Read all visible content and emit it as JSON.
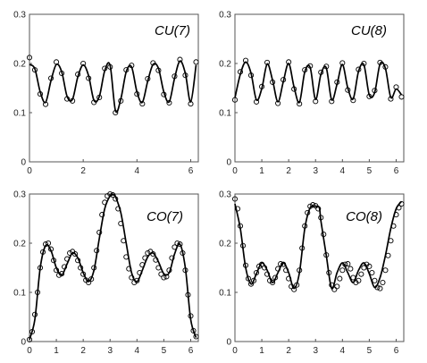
{
  "chart_data": [
    {
      "type": "line",
      "title": "CU(7)",
      "xlim": [
        0,
        6.2832
      ],
      "ylim": [
        0,
        0.3
      ],
      "xticks": [
        0,
        2,
        4,
        6
      ],
      "yticks": [
        0,
        0.1,
        0.2,
        0.3
      ],
      "ytick_labels": [
        "0",
        "0.1",
        "0.2",
        "0.3"
      ],
      "grid": false,
      "legend": "none",
      "series": [
        {
          "style": "solid-line",
          "x": [
            0,
            0.2,
            0.4,
            0.6,
            0.8,
            1.0,
            1.2,
            1.4,
            1.6,
            1.8,
            2.0,
            2.2,
            2.4,
            2.6,
            2.8,
            3.0,
            3.2,
            3.4,
            3.6,
            3.8,
            4.0,
            4.2,
            4.4,
            4.6,
            4.8,
            5.0,
            5.2,
            5.4,
            5.6,
            5.8,
            6.0,
            6.2
          ],
          "y": [
            0.198,
            0.189,
            0.142,
            0.121,
            0.165,
            0.198,
            0.183,
            0.133,
            0.127,
            0.173,
            0.197,
            0.175,
            0.125,
            0.133,
            0.185,
            0.196,
            0.104,
            0.128,
            0.183,
            0.193,
            0.142,
            0.121,
            0.164,
            0.198,
            0.19,
            0.142,
            0.122,
            0.17,
            0.205,
            0.18,
            0.122,
            0.197
          ]
        },
        {
          "style": "open-circle-markers",
          "x": [
            0,
            0.2,
            0.4,
            0.6,
            0.8,
            1.0,
            1.2,
            1.4,
            1.6,
            1.8,
            2.0,
            2.2,
            2.4,
            2.6,
            2.8,
            3.0,
            3.2,
            3.4,
            3.6,
            3.8,
            4.0,
            4.2,
            4.4,
            4.6,
            4.8,
            5.0,
            5.2,
            5.4,
            5.6,
            5.8,
            6.0,
            6.2
          ],
          "y": [
            0.212,
            0.187,
            0.138,
            0.117,
            0.17,
            0.203,
            0.18,
            0.128,
            0.124,
            0.178,
            0.2,
            0.17,
            0.121,
            0.131,
            0.19,
            0.193,
            0.1,
            0.124,
            0.187,
            0.196,
            0.138,
            0.118,
            0.169,
            0.201,
            0.186,
            0.137,
            0.12,
            0.174,
            0.208,
            0.176,
            0.118,
            0.203
          ]
        }
      ]
    },
    {
      "type": "line",
      "title": "CU(8)",
      "xlim": [
        0,
        6.2832
      ],
      "ylim": [
        0,
        0.3
      ],
      "xticks": [
        0,
        1,
        2,
        3,
        4,
        5,
        6
      ],
      "yticks": [
        0,
        0.1,
        0.2,
        0.3
      ],
      "ytick_labels": [
        "0",
        "0.1",
        "0.2",
        "0.3"
      ],
      "grid": false,
      "legend": "none",
      "series": [
        {
          "style": "solid-line",
          "x": [
            0,
            0.2,
            0.4,
            0.6,
            0.8,
            1.0,
            1.2,
            1.4,
            1.6,
            1.8,
            2.0,
            2.2,
            2.4,
            2.6,
            2.8,
            3.0,
            3.2,
            3.4,
            3.6,
            3.8,
            4.0,
            4.2,
            4.4,
            4.6,
            4.8,
            5.0,
            5.2,
            5.4,
            5.6,
            5.8,
            6.0,
            6.2
          ],
          "y": [
            0.13,
            0.178,
            0.203,
            0.18,
            0.126,
            0.149,
            0.199,
            0.166,
            0.122,
            0.163,
            0.2,
            0.152,
            0.121,
            0.183,
            0.192,
            0.127,
            0.178,
            0.191,
            0.126,
            0.158,
            0.198,
            0.15,
            0.128,
            0.184,
            0.197,
            0.136,
            0.141,
            0.199,
            0.19,
            0.131,
            0.148,
            0.136
          ]
        },
        {
          "style": "open-circle-markers",
          "x": [
            0,
            0.2,
            0.4,
            0.6,
            0.8,
            1.0,
            1.2,
            1.4,
            1.6,
            1.8,
            2.0,
            2.2,
            2.4,
            2.6,
            2.8,
            3.0,
            3.2,
            3.4,
            3.6,
            3.8,
            4.0,
            4.2,
            4.4,
            4.6,
            4.8,
            5.0,
            5.2,
            5.4,
            5.6,
            5.8,
            6.0,
            6.2
          ],
          "y": [
            0.126,
            0.183,
            0.206,
            0.176,
            0.122,
            0.153,
            0.202,
            0.162,
            0.119,
            0.167,
            0.203,
            0.148,
            0.118,
            0.187,
            0.195,
            0.123,
            0.182,
            0.194,
            0.123,
            0.162,
            0.201,
            0.146,
            0.125,
            0.188,
            0.2,
            0.133,
            0.145,
            0.202,
            0.193,
            0.128,
            0.152,
            0.132
          ]
        }
      ]
    },
    {
      "type": "line",
      "title": "CO(7)",
      "xlim": [
        0,
        6.2832
      ],
      "ylim": [
        0,
        0.3
      ],
      "xticks": [
        0,
        1,
        2,
        3,
        4,
        5,
        6
      ],
      "yticks": [
        0,
        0.1,
        0.2,
        0.3
      ],
      "ytick_labels": [
        "0",
        "0.1",
        "0.2",
        "0.3"
      ],
      "grid": false,
      "legend": "none",
      "series": [
        {
          "style": "solid-line",
          "x": [
            0,
            0.2,
            0.4,
            0.6,
            0.8,
            1.0,
            1.2,
            1.4,
            1.6,
            1.8,
            2.0,
            2.2,
            2.4,
            2.6,
            2.8,
            3.0,
            3.14159,
            3.2,
            3.4,
            3.6,
            3.8,
            4.0,
            4.2,
            4.4,
            4.6,
            4.8,
            5.0,
            5.2,
            5.4,
            5.6,
            5.8,
            6.0,
            6.2
          ],
          "y": [
            0.004,
            0.045,
            0.15,
            0.195,
            0.185,
            0.15,
            0.135,
            0.158,
            0.18,
            0.17,
            0.14,
            0.122,
            0.145,
            0.21,
            0.27,
            0.296,
            0.298,
            0.295,
            0.262,
            0.2,
            0.14,
            0.122,
            0.145,
            0.172,
            0.18,
            0.162,
            0.138,
            0.14,
            0.178,
            0.198,
            0.15,
            0.045,
            0.008
          ]
        },
        {
          "style": "open-circle-markers",
          "x": [
            0,
            0.1,
            0.2,
            0.3,
            0.4,
            0.5,
            0.6,
            0.7,
            0.8,
            0.9,
            1.0,
            1.1,
            1.2,
            1.3,
            1.4,
            1.5,
            1.6,
            1.7,
            1.8,
            1.9,
            2.0,
            2.1,
            2.2,
            2.3,
            2.4,
            2.5,
            2.6,
            2.7,
            2.8,
            2.9,
            3.0,
            3.1,
            3.2,
            3.3,
            3.4,
            3.5,
            3.6,
            3.7,
            3.8,
            3.9,
            4.0,
            4.1,
            4.2,
            4.3,
            4.4,
            4.5,
            4.6,
            4.7,
            4.8,
            4.9,
            5.0,
            5.1,
            5.2,
            5.3,
            5.4,
            5.5,
            5.6,
            5.7,
            5.8,
            5.9,
            6.0,
            6.1,
            6.2
          ],
          "y": [
            0.004,
            0.02,
            0.055,
            0.1,
            0.15,
            0.182,
            0.198,
            0.2,
            0.188,
            0.165,
            0.145,
            0.135,
            0.138,
            0.152,
            0.168,
            0.18,
            0.183,
            0.178,
            0.165,
            0.15,
            0.137,
            0.125,
            0.12,
            0.127,
            0.15,
            0.185,
            0.222,
            0.258,
            0.283,
            0.296,
            0.3,
            0.298,
            0.29,
            0.27,
            0.24,
            0.205,
            0.172,
            0.148,
            0.13,
            0.12,
            0.124,
            0.14,
            0.156,
            0.17,
            0.18,
            0.183,
            0.178,
            0.166,
            0.15,
            0.137,
            0.13,
            0.132,
            0.145,
            0.17,
            0.192,
            0.2,
            0.198,
            0.18,
            0.145,
            0.095,
            0.052,
            0.022,
            0.01
          ]
        }
      ]
    },
    {
      "type": "line",
      "title": "CO(8)",
      "xlim": [
        0,
        6.2832
      ],
      "ylim": [
        0,
        0.3
      ],
      "xticks": [
        0,
        1,
        2,
        3,
        4,
        5,
        6
      ],
      "yticks": [
        0,
        0.1,
        0.2,
        0.3
      ],
      "ytick_labels": [
        "0",
        "0.1",
        "0.2",
        "0.3"
      ],
      "grid": false,
      "legend": "none",
      "series": [
        {
          "style": "solid-line",
          "x": [
            0,
            0.2,
            0.4,
            0.6,
            0.8,
            1.0,
            1.2,
            1.4,
            1.6,
            1.8,
            2.0,
            2.2,
            2.4,
            2.6,
            2.8,
            3.0,
            3.14159,
            3.2,
            3.4,
            3.6,
            3.8,
            4.0,
            4.2,
            4.4,
            4.6,
            4.8,
            5.0,
            5.2,
            5.4,
            5.6,
            5.8,
            6.0,
            6.2
          ],
          "y": [
            0.28,
            0.23,
            0.15,
            0.117,
            0.138,
            0.16,
            0.145,
            0.12,
            0.14,
            0.16,
            0.14,
            0.108,
            0.14,
            0.23,
            0.272,
            0.275,
            0.272,
            0.245,
            0.175,
            0.108,
            0.14,
            0.16,
            0.14,
            0.12,
            0.145,
            0.16,
            0.138,
            0.11,
            0.13,
            0.175,
            0.23,
            0.27,
            0.285
          ]
        },
        {
          "style": "open-circle-markers",
          "x": [
            0,
            0.1,
            0.2,
            0.3,
            0.4,
            0.5,
            0.6,
            0.7,
            0.8,
            0.9,
            1.0,
            1.1,
            1.2,
            1.3,
            1.4,
            1.5,
            1.6,
            1.7,
            1.8,
            1.9,
            2.0,
            2.1,
            2.2,
            2.3,
            2.4,
            2.5,
            2.6,
            2.7,
            2.8,
            2.9,
            3.0,
            3.1,
            3.2,
            3.3,
            3.4,
            3.5,
            3.6,
            3.7,
            3.8,
            3.9,
            4.0,
            4.1,
            4.2,
            4.3,
            4.4,
            4.5,
            4.6,
            4.7,
            4.8,
            4.9,
            5.0,
            5.1,
            5.2,
            5.3,
            5.4,
            5.5,
            5.6,
            5.7,
            5.8,
            5.9,
            6.0,
            6.1,
            6.2
          ],
          "y": [
            0.29,
            0.27,
            0.235,
            0.195,
            0.155,
            0.128,
            0.117,
            0.124,
            0.14,
            0.153,
            0.157,
            0.15,
            0.137,
            0.124,
            0.12,
            0.13,
            0.148,
            0.158,
            0.157,
            0.145,
            0.128,
            0.112,
            0.106,
            0.115,
            0.145,
            0.19,
            0.235,
            0.262,
            0.275,
            0.278,
            0.276,
            0.27,
            0.252,
            0.218,
            0.176,
            0.14,
            0.115,
            0.106,
            0.112,
            0.128,
            0.145,
            0.157,
            0.158,
            0.148,
            0.13,
            0.12,
            0.124,
            0.137,
            0.15,
            0.157,
            0.153,
            0.14,
            0.124,
            0.11,
            0.108,
            0.12,
            0.145,
            0.175,
            0.205,
            0.235,
            0.258,
            0.272,
            0.28
          ]
        }
      ]
    }
  ]
}
